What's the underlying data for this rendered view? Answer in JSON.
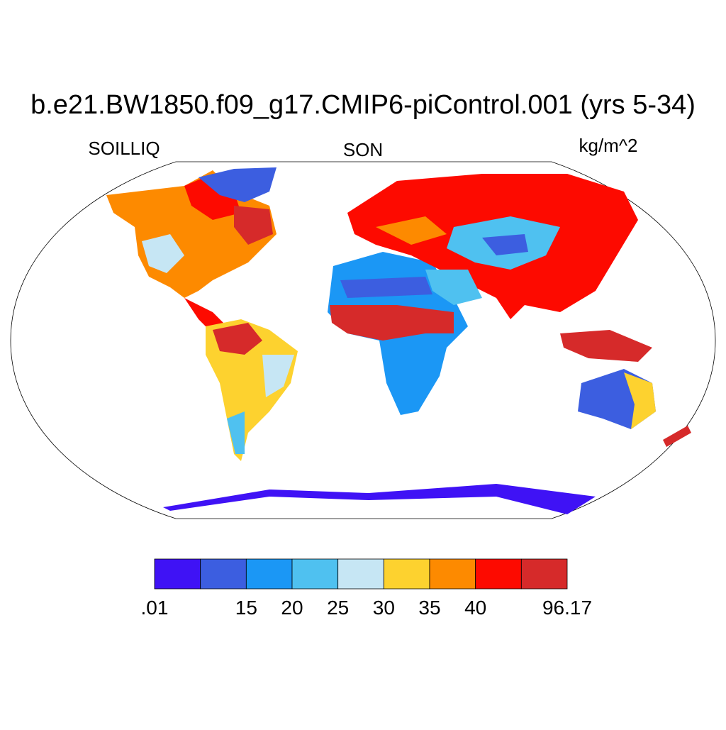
{
  "header": {
    "title": "b.e21.BW1850.f09_g17.CMIP6-piControl.001 (yrs 5-34)",
    "left_label": "SOILLIQ",
    "center_label": "SON",
    "right_label": "kg/m^2"
  },
  "colorbar": {
    "colors": [
      "#3f12f5",
      "#3c5ee0",
      "#1b97f5",
      "#4fc1f0",
      "#c6e6f4",
      "#fdd22f",
      "#fd8a00",
      "#fd0a00",
      "#d62a2a"
    ],
    "edges": [
      {
        "value": 0.01,
        "label": ".01"
      },
      null,
      15,
      20,
      25,
      30,
      35,
      40,
      null,
      96.17
    ]
  }
}
